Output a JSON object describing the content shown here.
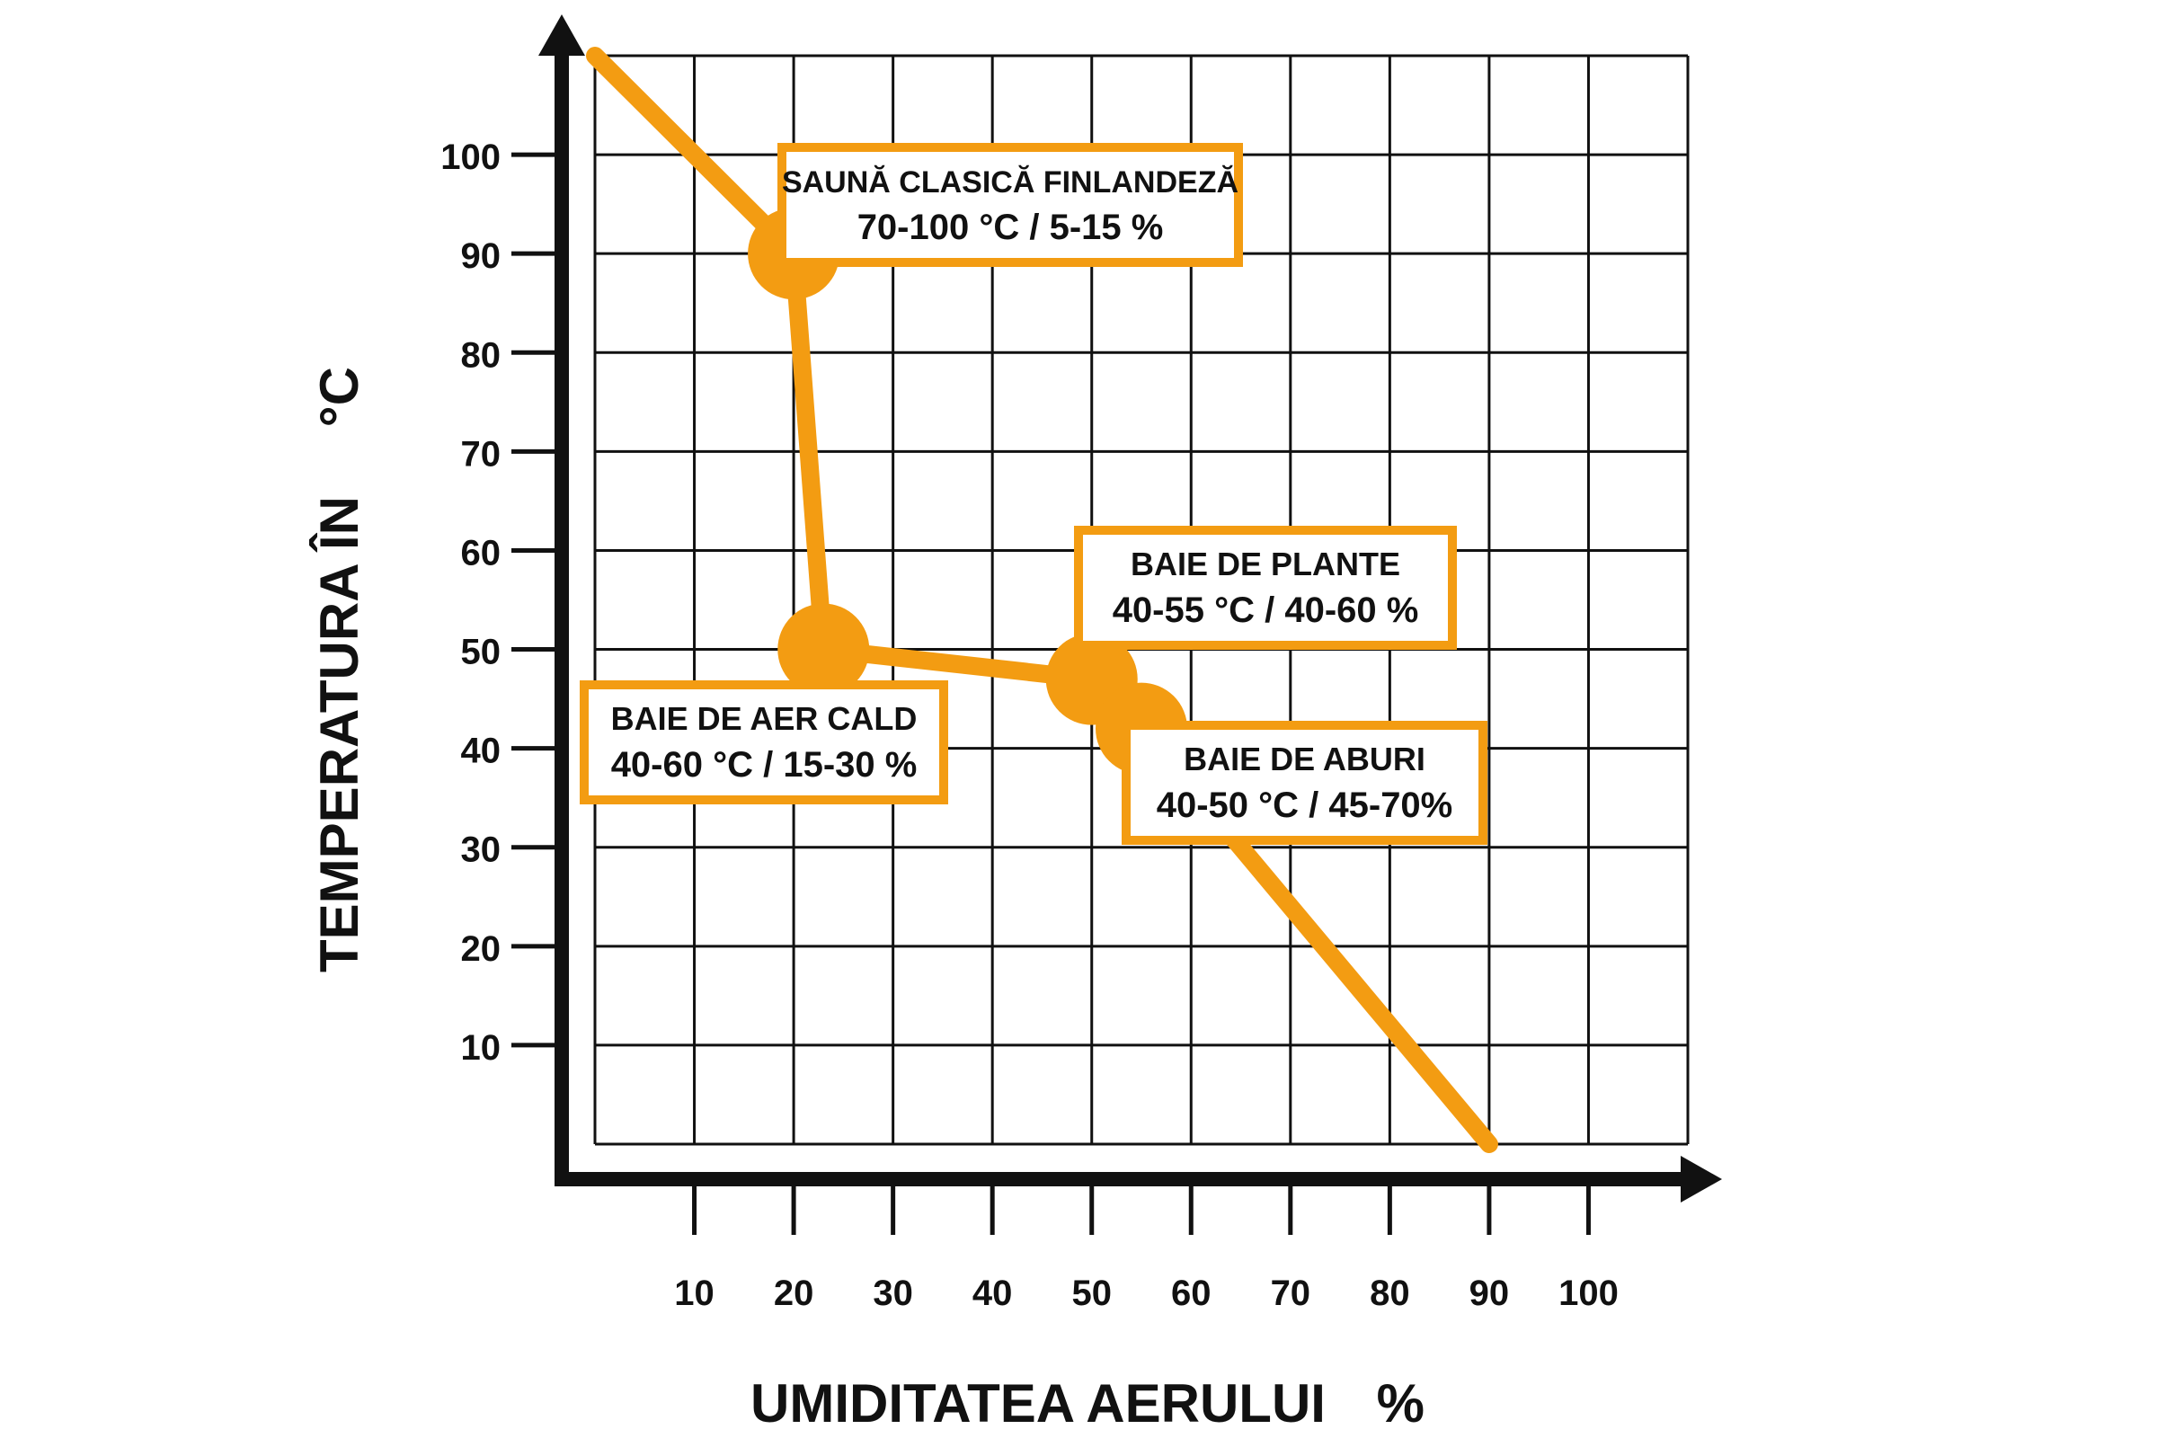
{
  "chart_data": {
    "type": "line",
    "title": "",
    "xlabel": "UMIDITATEA AERULUI",
    "xunit": "%",
    "ylabel": "TEMPERATURA ÎN",
    "yunit": "°C",
    "xlim": [
      0,
      110
    ],
    "ylim": [
      0,
      110
    ],
    "xticks": [
      10,
      20,
      30,
      40,
      50,
      60,
      70,
      80,
      90,
      100
    ],
    "yticks": [
      10,
      20,
      30,
      40,
      50,
      60,
      70,
      80,
      90,
      100
    ],
    "grid": true,
    "line_color": "#f39c12",
    "axis_color": "#111111",
    "series": [
      {
        "x": [
          0,
          20,
          23,
          50,
          55,
          90
        ],
        "y": [
          110,
          90,
          50,
          47,
          42,
          0
        ]
      }
    ],
    "points": [
      {
        "x": 20,
        "y": 90
      },
      {
        "x": 23,
        "y": 50
      },
      {
        "x": 50,
        "y": 47
      },
      {
        "x": 55,
        "y": 42
      }
    ],
    "annotations": [
      {
        "name": "SAUNĂ CLASICĂ FINLANDEZĂ",
        "range": "70-100 °C / 5-15 %"
      },
      {
        "name": "BAIE DE PLANTE",
        "range": "40-55 °C / 40-60 %"
      },
      {
        "name": "BAIE DE AER CALD",
        "range": "40-60 °C / 15-30 %"
      },
      {
        "name": "BAIE DE ABURI",
        "range": "40-50 °C / 45-70%"
      }
    ]
  }
}
